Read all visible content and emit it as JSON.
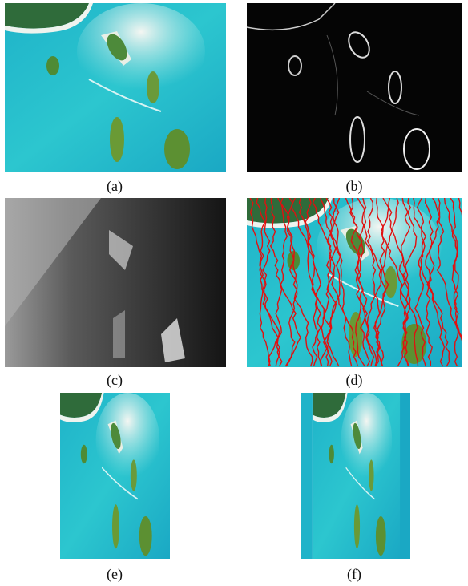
{
  "panels": [
    {
      "caption": "(a)"
    },
    {
      "caption": "(b)"
    },
    {
      "caption": "(c)"
    },
    {
      "caption": "(d)"
    },
    {
      "caption": "(e)"
    },
    {
      "caption": "(f)"
    }
  ]
}
